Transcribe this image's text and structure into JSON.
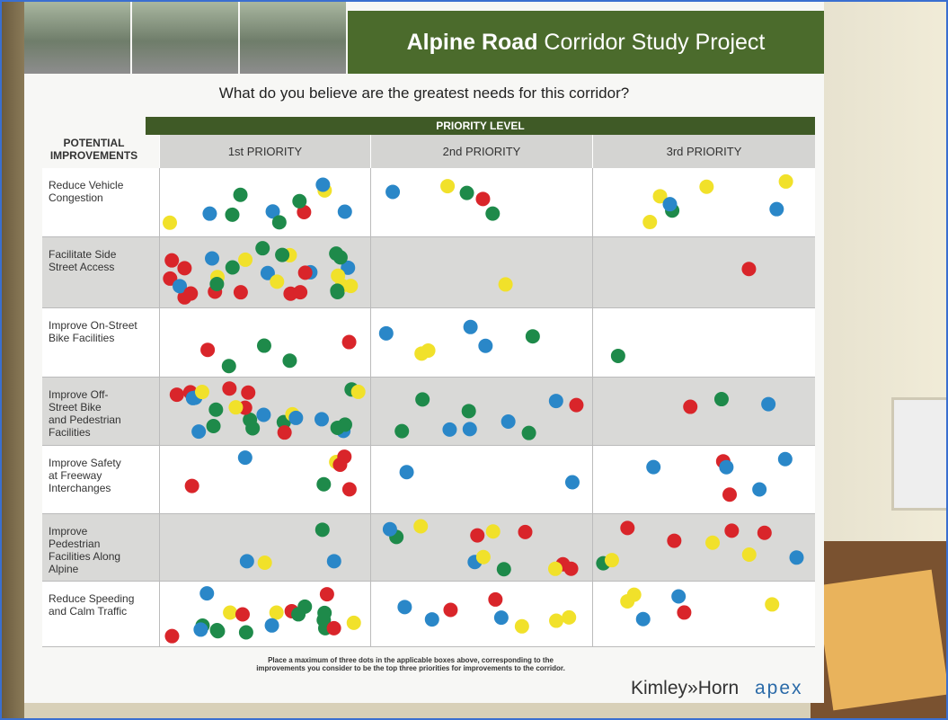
{
  "header": {
    "title_bold": "Alpine Road",
    "title_rest": "Corridor Study Project"
  },
  "question": "What do you believe are the greatest needs for this corridor?",
  "table": {
    "group_header": "PRIORITY LEVEL",
    "row_header": "POTENTIAL\nIMPROVEMENTS",
    "columns": [
      "1st PRIORITY",
      "2nd PRIORITY",
      "3rd PRIORITY"
    ],
    "rows": [
      "Reduce Vehicle\nCongestion",
      "Facilitate Side\nStreet Access",
      "Improve On-Street\nBike Facilities",
      "Improve Off-\nStreet Bike\nand Pedestrian\nFacilities",
      "Improve Safety\nat Freeway\nInterchanges",
      "Improve\nPedestrian\nFacilities Along\nAlpine",
      "Reduce Speeding\nand Calm Traffic"
    ]
  },
  "footer_note": "Place a maximum of three dots in the applicable boxes above, corresponding to the\nimprovements you consider to be the top three priorities for improvements to the corridor.",
  "logos": [
    "Kimley»Horn",
    "apex"
  ]
}
